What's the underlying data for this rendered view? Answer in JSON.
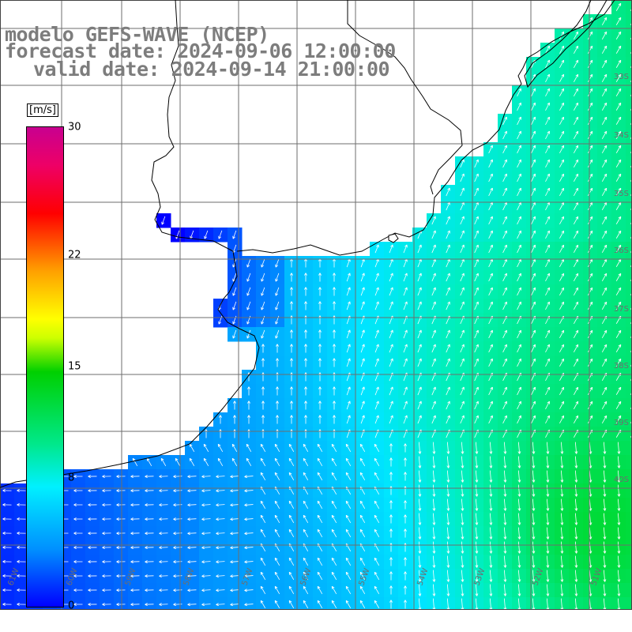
{
  "header": {
    "line1": "modelo GEFS-WAVE (NCEP)",
    "line2": "forecast date: 2024-09-06 12:00:00",
    "line3": "valid date: 2024-09-14 21:00:00"
  },
  "colorbar": {
    "unit": "[m/s]",
    "min": 0,
    "max": 30,
    "ticks": [
      {
        "value": 0,
        "label": "0"
      },
      {
        "value": 8,
        "label": "8"
      },
      {
        "value": 15,
        "label": "15"
      },
      {
        "value": 22,
        "label": "22"
      },
      {
        "value": 30,
        "label": "30"
      }
    ]
  },
  "map": {
    "lat_labels": [
      "33S",
      "34S",
      "35S",
      "36S",
      "37S",
      "38S",
      "39S",
      "40S"
    ],
    "lon_labels": [
      "61W",
      "60W",
      "59W",
      "58W",
      "57W",
      "56W",
      "55W",
      "54W",
      "53W",
      "52W",
      "51W"
    ],
    "colors": {
      "land": "#ffffff",
      "grid": "#6e6e6e",
      "coast": "#000000",
      "arrow": "#ffffff"
    }
  }
}
